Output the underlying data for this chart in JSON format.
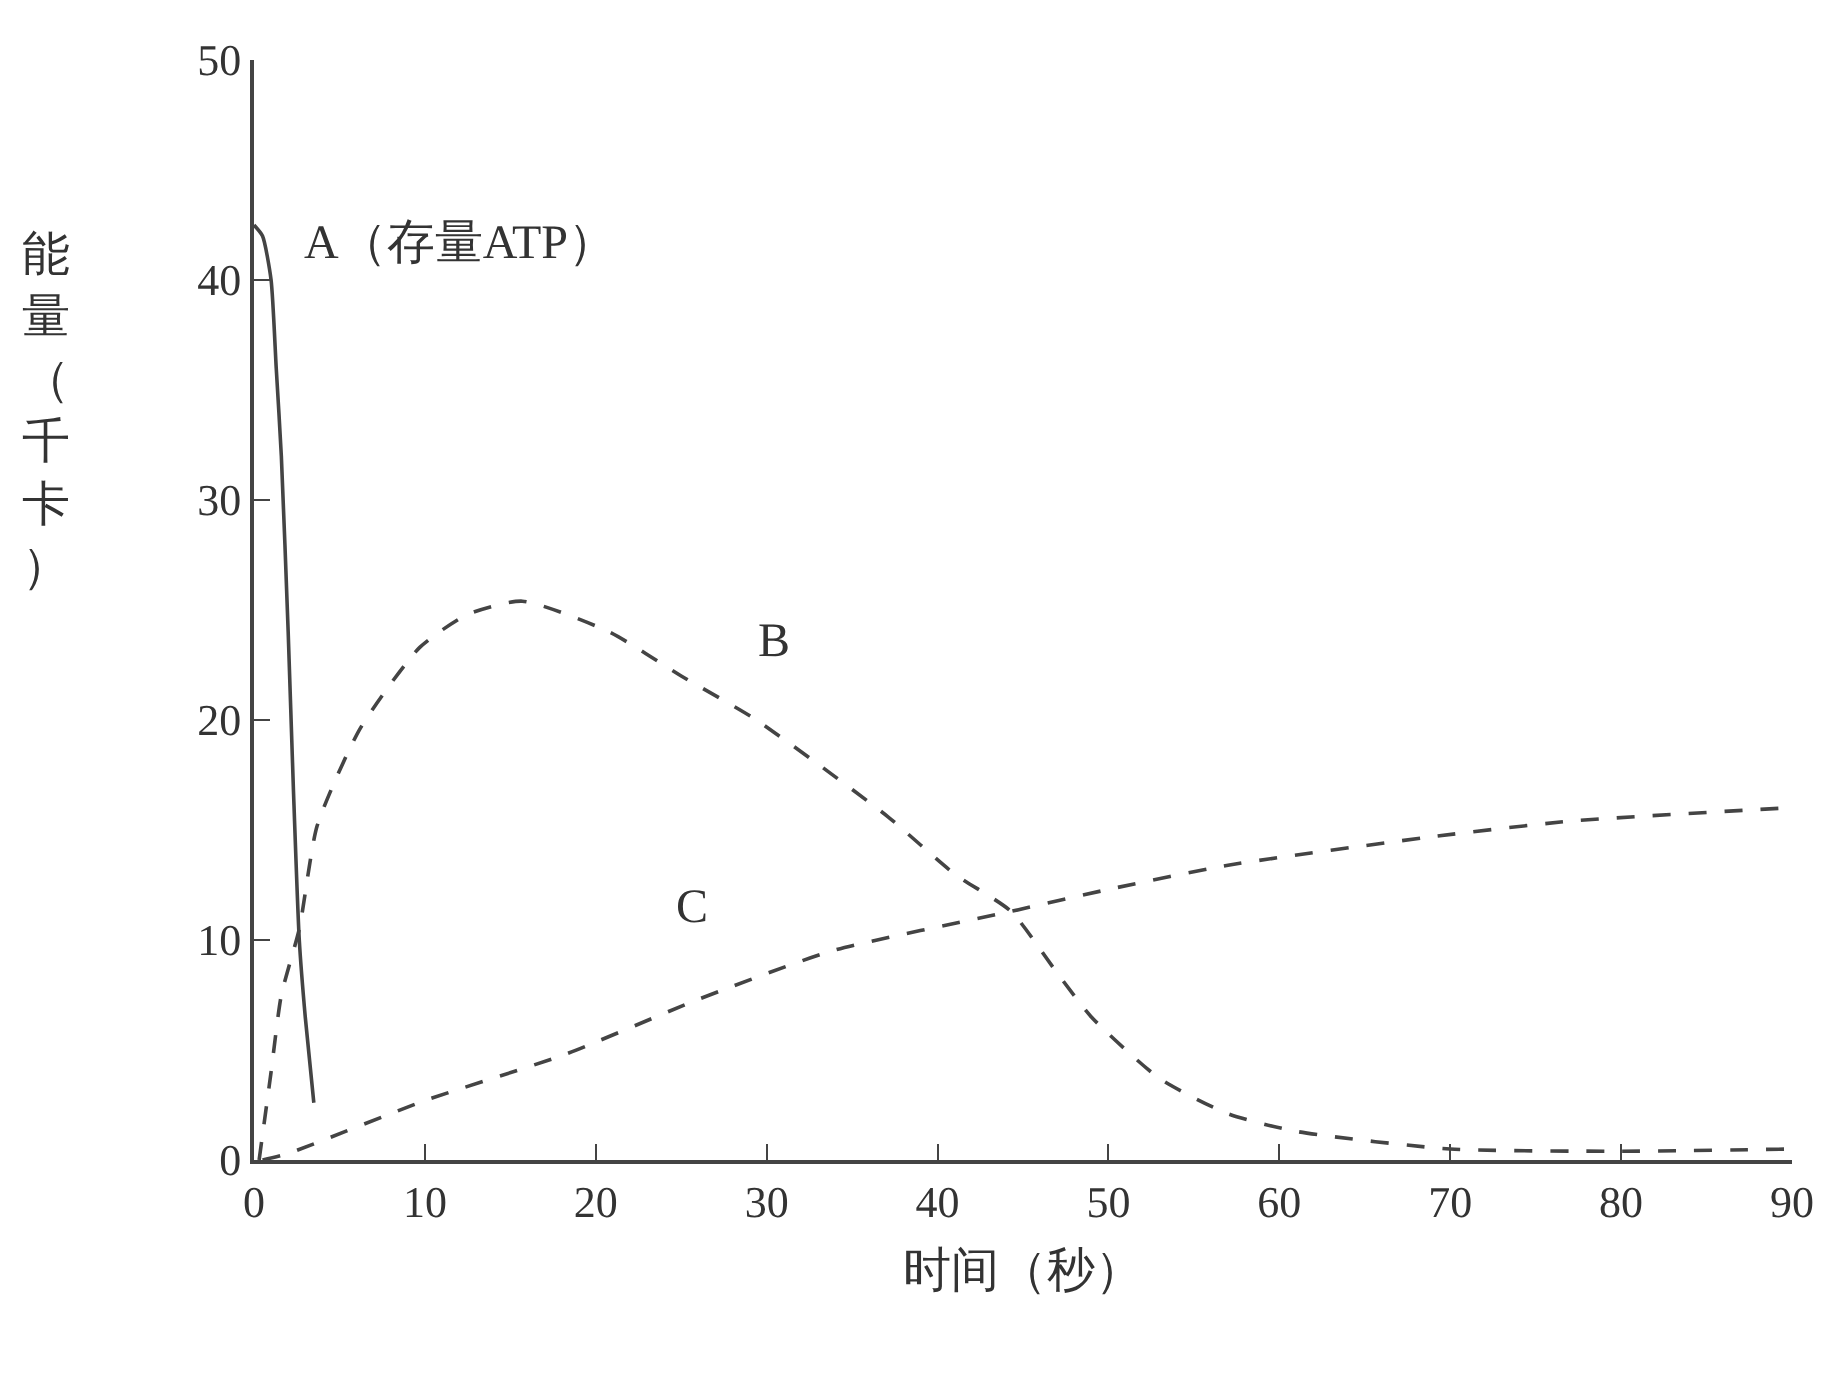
{
  "chart_data": {
    "type": "line",
    "xlabel": "时间（秒）",
    "ylabel": "能量（千卡）",
    "xlim": [
      0,
      90
    ],
    "xticks": [
      0,
      10,
      20,
      30,
      40,
      50,
      60,
      70,
      80,
      90
    ],
    "ylim": [
      0,
      50
    ],
    "yticks": [
      0,
      10,
      20,
      30,
      40,
      50
    ],
    "grid": false,
    "legend": false,
    "marker": "none",
    "series": [
      {
        "name": "A（存量ATP）",
        "color": "#444444",
        "line_style": "solid",
        "x": [
          0,
          0.5,
          1,
          1.3,
          1.6,
          2,
          2.3,
          2.65,
          3,
          3.5
        ],
        "values": [
          42.5,
          42,
          40,
          36,
          32,
          24,
          17,
          10,
          6.5,
          2.6
        ]
      },
      {
        "name": "B",
        "color": "#444444",
        "line_style": "dashed",
        "x": [
          0.3,
          1,
          1.6,
          2.65,
          3.7,
          6.2,
          9.7,
          12.5,
          15.7,
          20.8,
          25,
          29.2,
          33,
          37.1,
          41,
          44.3,
          47,
          49,
          53,
          57,
          61,
          70,
          80,
          90
        ],
        "values": [
          0,
          4,
          7.5,
          10.5,
          15.2,
          19.6,
          23.3,
          24.8,
          25.4,
          24,
          22,
          20.1,
          18,
          15.6,
          13,
          11.3,
          8.5,
          6.5,
          3.7,
          2.1,
          1.3,
          0.5,
          0.4,
          0.5
        ]
      },
      {
        "name": "C",
        "color": "#444444",
        "line_style": "dashed",
        "x": [
          0.5,
          2,
          10,
          18.2,
          26,
          33.8,
          44.3,
          50,
          57,
          69,
          77,
          89.6
        ],
        "values": [
          0,
          0.3,
          2.7,
          4.8,
          7.3,
          9.5,
          11.3,
          12.3,
          13.4,
          14.7,
          15.4,
          16
        ]
      }
    ]
  }
}
